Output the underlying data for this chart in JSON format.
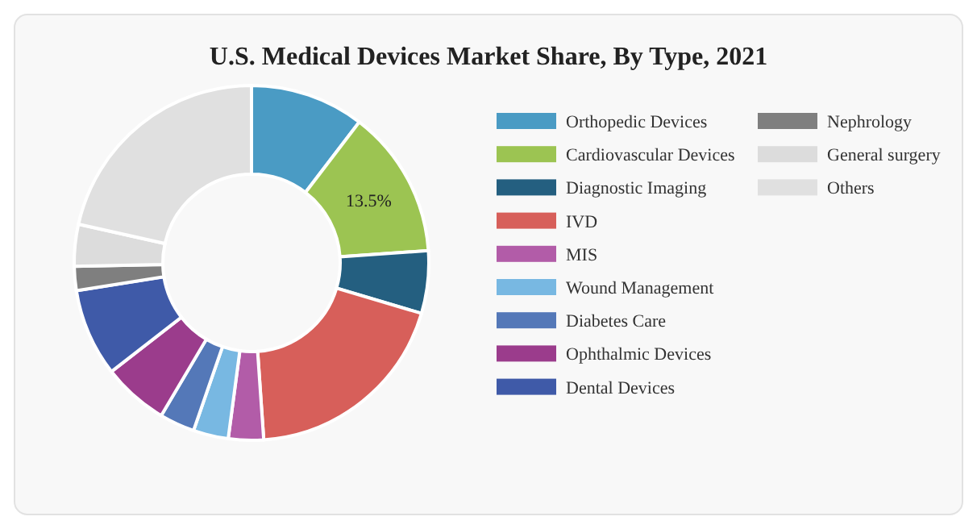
{
  "chart_data": {
    "type": "donut",
    "title": "U.S. Medical Devices Market Share, By Type, 2021",
    "categories": [
      "Orthopedic Devices",
      "Cardiovascular Devices",
      "Diagnostic Imaging",
      "IVD",
      "MIS",
      "Wound Management",
      "Diabetes Care",
      "Ophthalmic Devices",
      "Dental Devices",
      "Nephrology",
      "General surgery",
      "Others"
    ],
    "values": [
      10.4,
      13.5,
      5.7,
      19.3,
      3.2,
      3.2,
      3.2,
      6.0,
      8.0,
      2.2,
      3.8,
      21.5
    ],
    "colors": [
      "#4a9bc4",
      "#9cc452",
      "#245f80",
      "#d75f5a",
      "#b25ca8",
      "#78b8e2",
      "#5478b8",
      "#9b3c8c",
      "#3f5aa8",
      "#7f7f7f",
      "#dcdcdc",
      "#e0e0e0"
    ],
    "value_labels": [
      null,
      "13.5%",
      null,
      null,
      null,
      null,
      null,
      null,
      null,
      null,
      null,
      null
    ],
    "legend": "right"
  }
}
